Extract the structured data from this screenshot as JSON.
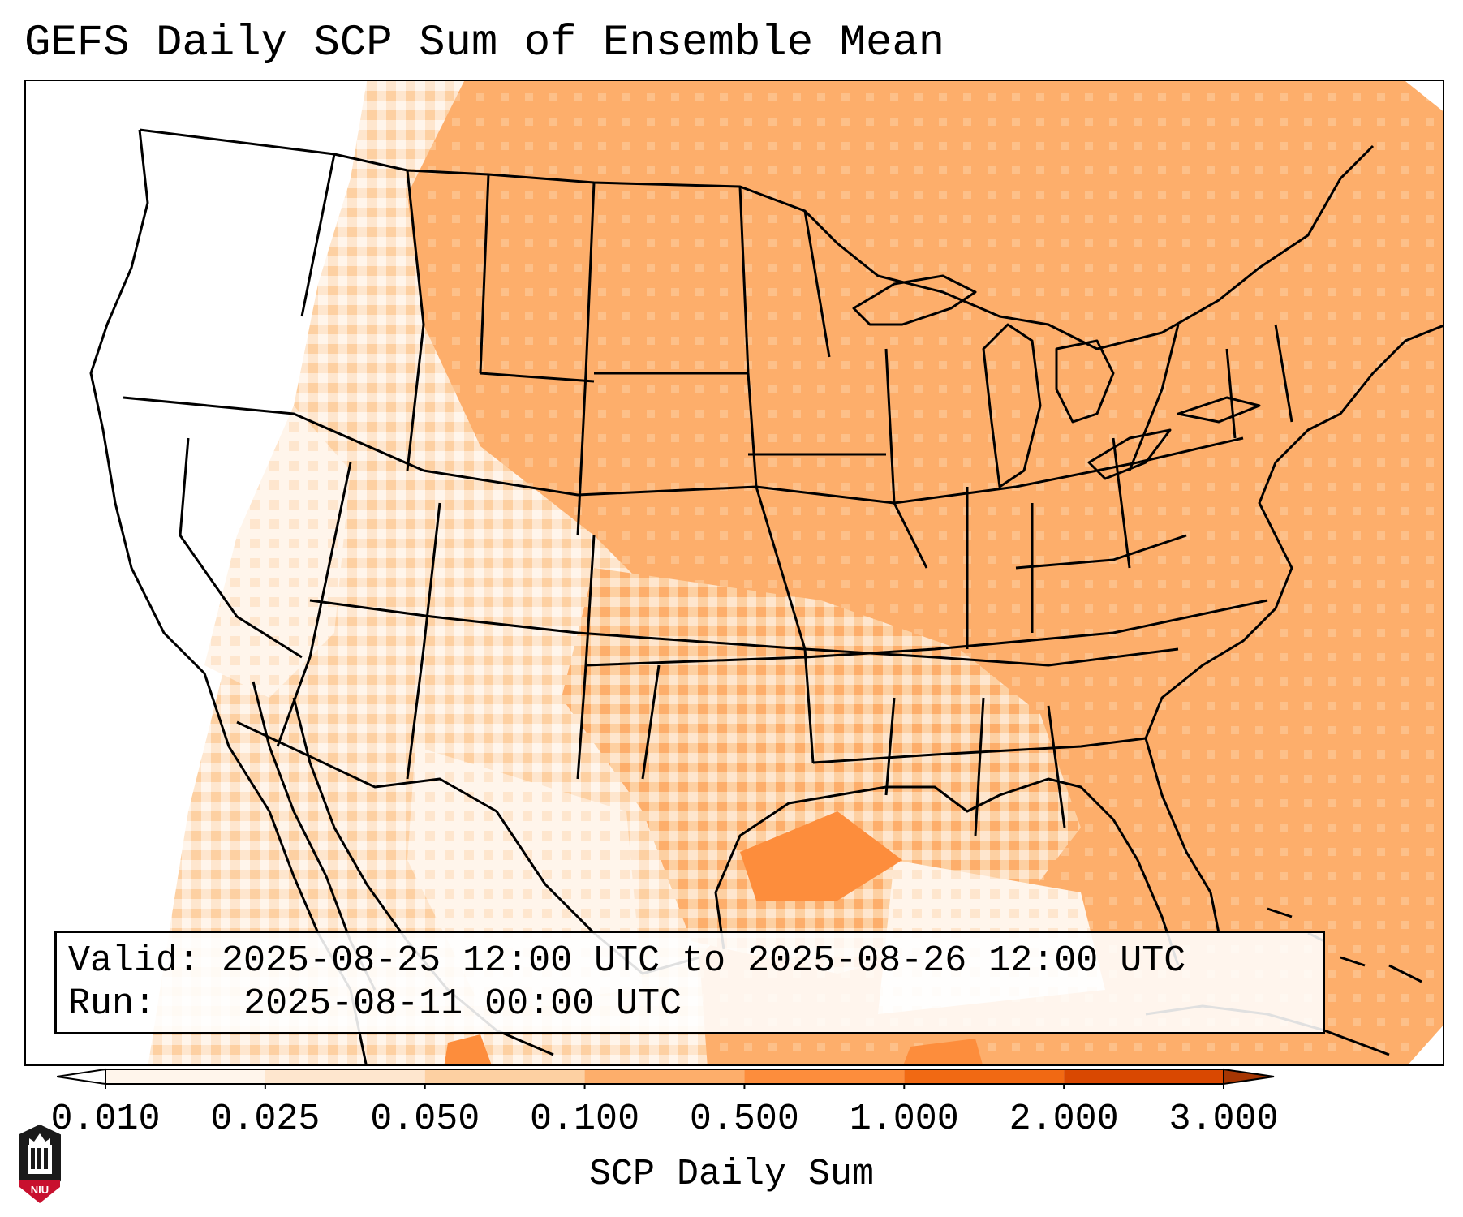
{
  "title": "GEFS Daily SCP Sum of Ensemble Mean",
  "info": {
    "valid_label": "Valid:",
    "valid_value": "2025-08-25 12:00 UTC to 2025-08-26 12:00 UTC",
    "run_label": "Run:",
    "run_value": "2025-08-11 00:00 UTC"
  },
  "colorbar": {
    "label": "SCP Daily Sum",
    "levels": [
      "0.010",
      "0.025",
      "0.050",
      "0.100",
      "0.500",
      "1.000",
      "2.000",
      "3.000"
    ],
    "colors": [
      "#fff5eb",
      "#fee6ce",
      "#fdd0a2",
      "#fdae6b",
      "#fd8d3c",
      "#f16913",
      "#d94801"
    ],
    "under_color": "#ffffff",
    "over_color": "#a63603"
  },
  "logo": {
    "text": "NIU",
    "accent": "#c8102e"
  }
}
